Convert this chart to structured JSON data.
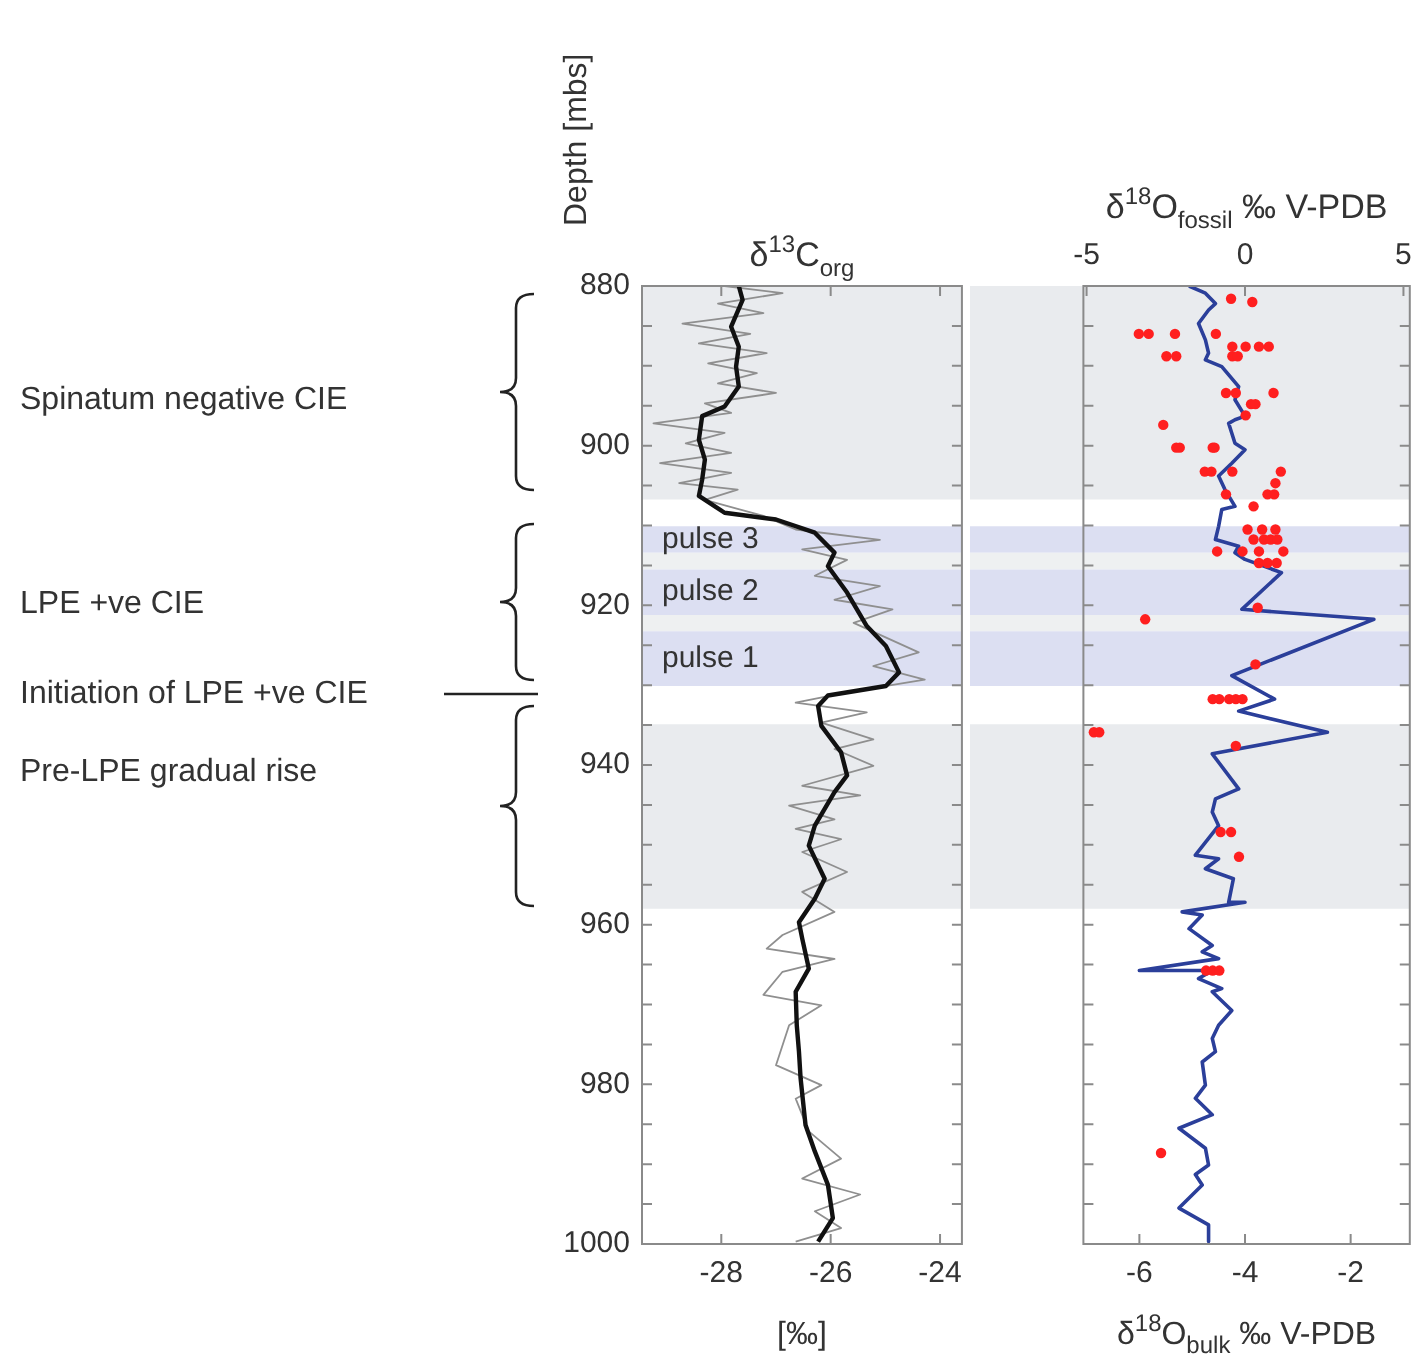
{
  "chart_data": [
    {
      "type": "line",
      "title": "δ$^{13}$C$_{org}$",
      "xlabel": "[‰]",
      "ylabel": "Depth [mbs]",
      "xlim": [
        -29.45,
        -23.6
      ],
      "xticks": [
        -28,
        -26,
        -24
      ],
      "ylim": [
        1000,
        880
      ],
      "yticks": [
        880,
        {
          "value": 885,
          "label": null
        },
        {
          "value": 890,
          "label": null
        },
        {
          "value": 895,
          "label": null
        },
        900,
        {
          "value": 905,
          "label": null
        },
        {
          "value": 910,
          "label": null
        },
        {
          "value": 915,
          "label": null
        },
        920,
        {
          "value": 925,
          "label": null
        },
        {
          "value": 930,
          "label": null
        },
        {
          "value": 935,
          "label": null
        },
        940,
        {
          "value": 945,
          "label": null
        },
        {
          "value": 950,
          "label": null
        },
        {
          "value": 955,
          "label": null
        },
        960,
        {
          "value": 965,
          "label": null
        },
        {
          "value": 970,
          "label": null
        },
        {
          "value": 975,
          "label": null
        },
        980,
        {
          "value": 985,
          "label": null
        },
        {
          "value": 990,
          "label": null
        },
        {
          "value": 995,
          "label": null
        },
        1000
      ],
      "bands": [
        {
          "axis": "y",
          "from": 880,
          "to": 906.75,
          "color": "#e9ebee"
        },
        {
          "axis": "y",
          "from": 910.1,
          "to": 913.4,
          "label": "pulse 3",
          "color": "#dcdff2"
        },
        {
          "axis": "y",
          "from": 913.4,
          "to": 915.5,
          "color": "#eef0f1"
        },
        {
          "axis": "y",
          "from": 915.5,
          "to": 921.2,
          "label": "pulse 2",
          "color": "#dcdff2"
        },
        {
          "axis": "y",
          "from": 921.2,
          "to": 923.25,
          "color": "#eef0f1"
        },
        {
          "axis": "y",
          "from": 923.25,
          "to": 930.1,
          "label": "pulse 1",
          "color": "#dcdff2"
        },
        {
          "axis": "y",
          "from": 934.9,
          "to": 958,
          "color": "#e9ebee"
        }
      ],
      "annotations": [
        "Spinatum negative CIE",
        "LPE +ve CIE",
        "Initiation of LPE +ve CIE",
        "Pre-LPE gradual rise"
      ],
      "series": [
        {
          "type": "line",
          "color": "#8f8f8f",
          "x": [
            -27.94,
            -26.88,
            -28.06,
            -27.23,
            -28.71,
            -27.47,
            -28.41,
            -27.17,
            -28.24,
            -27.35,
            -28.06,
            -27.0,
            -28.3,
            -27.82,
            -29.24,
            -27.94,
            -28.65,
            -27.82,
            -29.12,
            -27.82,
            -28.77,
            -27.7,
            -28.3,
            -27.23,
            -26.64,
            -25.1,
            -26.52,
            -25.7,
            -26.29,
            -25.1,
            -25.93,
            -24.87,
            -25.58,
            -24.39,
            -25.22,
            -24.28,
            -25.7,
            -26.64,
            -25.34,
            -26.17,
            -25.22,
            -25.93,
            -25.22,
            -26.52,
            -25.46,
            -26.76,
            -25.93,
            -26.64,
            -25.81,
            -26.52,
            -25.7,
            -26.52,
            -25.93,
            -26.88,
            -27.17,
            -25.93,
            -26.88,
            -27.23,
            -26.17,
            -26.76,
            -27.0,
            -26.17,
            -26.64,
            -26.4,
            -25.81,
            -26.52,
            -25.46,
            -26.29,
            -25.81,
            -26.64
          ],
          "values": [
            880,
            880.9,
            882.2,
            883.4,
            884.7,
            886.0,
            887.2,
            888.4,
            889.7,
            890.9,
            892.2,
            893.4,
            894.7,
            895.9,
            897.2,
            898.4,
            899.7,
            900.9,
            902.2,
            903.4,
            904.7,
            905.5,
            906.8,
            908.8,
            910.5,
            911.8,
            913.0,
            914.3,
            916.3,
            917.6,
            919.3,
            920.5,
            922.2,
            925.9,
            927.6,
            929.3,
            930.9,
            932.2,
            933.4,
            934.7,
            936.8,
            938.0,
            940.1,
            942.6,
            943.8,
            945.1,
            946.8,
            948.0,
            949.3,
            950.9,
            953.4,
            955.9,
            958.4,
            961.3,
            963.0,
            964.3,
            965.9,
            968.8,
            970.1,
            972.6,
            977.6,
            980.1,
            981.8,
            985.9,
            989.3,
            991.8,
            993.8,
            995.9,
            998.0,
            999.7
          ]
        },
        {
          "type": "line",
          "color": "#111111",
          "x": [
            -27.68,
            -27.61,
            -27.82,
            -27.68,
            -27.73,
            -27.68,
            -27.94,
            -28.35,
            -28.41,
            -28.3,
            -28.35,
            -28.41,
            -27.94,
            -27.0,
            -26.29,
            -25.93,
            -26.05,
            -25.7,
            -25.52,
            -25.34,
            -24.99,
            -24.75,
            -24.99,
            -26.05,
            -26.23,
            -26.17,
            -25.81,
            -25.7,
            -25.93,
            -26.29,
            -26.4,
            -26.11,
            -26.29,
            -26.58,
            -26.52,
            -26.4,
            -26.64,
            -26.62,
            -26.58,
            -26.55,
            -26.46,
            -26.29,
            -26.05,
            -25.96,
            -26.23
          ],
          "values": [
            880,
            881.75,
            885.1,
            887.6,
            890.1,
            892.6,
            895.1,
            896.3,
            899.25,
            901.75,
            904.25,
            906.3,
            908.4,
            909.25,
            910.9,
            913.4,
            915.1,
            918.4,
            920.5,
            922.6,
            925.1,
            928.4,
            930.1,
            931.3,
            932.6,
            935.1,
            938.4,
            941.3,
            943.4,
            947.6,
            950.1,
            954.25,
            956.75,
            959.7,
            961.75,
            965.5,
            968.4,
            972.6,
            975.9,
            979.25,
            985.1,
            988.4,
            992.6,
            996.75,
            999.7
          ]
        }
      ]
    },
    {
      "type": "line",
      "xlabel": "δ$^{18}$O$_{bulk}$ ‰ V-PDB",
      "x2label": "δ$^{18}$O$_{fossil}$ ‰ V-PDB",
      "tick_labels": "x",
      "xlim": [
        -7.06,
        -0.88
      ],
      "xticks": [
        -6,
        -4,
        -2
      ],
      "x2lim": [
        -5.1,
        5.2
      ],
      "x2ticks": [
        -5,
        0,
        5
      ],
      "ylim": [
        1000,
        880
      ],
      "yticks": [
        880,
        885,
        890,
        895,
        900,
        905,
        910,
        915,
        920,
        925,
        930,
        935,
        940,
        945,
        950,
        955,
        960,
        965,
        970,
        975,
        980,
        985,
        990,
        995,
        1000
      ],
      "bands": [
        {
          "axis": "y",
          "from": 880,
          "to": 906.75,
          "color": "#e9ebee"
        },
        {
          "axis": "y",
          "from": 910.1,
          "to": 913.4,
          "color": "#dcdff2"
        },
        {
          "axis": "y",
          "from": 913.4,
          "to": 915.5,
          "color": "#eef0f1"
        },
        {
          "axis": "y",
          "from": 915.5,
          "to": 921.2,
          "color": "#dcdff2"
        },
        {
          "axis": "y",
          "from": 921.2,
          "to": 923.25,
          "color": "#eef0f1"
        },
        {
          "axis": "y",
          "from": 923.25,
          "to": 930.1,
          "color": "#dcdff2"
        },
        {
          "axis": "y",
          "from": 934.9,
          "to": 958,
          "color": "#e9ebee"
        }
      ],
      "series": [
        {
          "type": "line",
          "color": "#2b3f9a",
          "x": [
            -5.06,
            -4.75,
            -4.56,
            -4.69,
            -4.88,
            -4.75,
            -4.69,
            -4.75,
            -4.44,
            -4.12,
            -4.19,
            -4.0,
            -4.19,
            -4.31,
            -4.19,
            -4.0,
            -4.25,
            -4.5,
            -4.38,
            -4.19,
            -4.44,
            -4.5,
            -4.56,
            -4.12,
            -4.19,
            -4.0,
            -3.31,
            -4.06,
            -1.56,
            -4.25,
            -3.44,
            -4.12,
            -2.44,
            -4.62,
            -4.12,
            -4.56,
            -4.62,
            -4.5,
            -4.94,
            -4.5,
            -4.75,
            -4.22,
            -4.31,
            -4.0,
            -5.19,
            -4.81,
            -5.06,
            -4.62,
            -4.81,
            -4.5,
            -6.0,
            -4.62,
            -4.88,
            -4.44,
            -4.62,
            -4.25,
            -4.5,
            -4.62,
            -4.56,
            -4.81,
            -4.75,
            -4.94,
            -4.62,
            -5.25,
            -4.75,
            -4.69,
            -4.94,
            -4.81,
            -5.25,
            -4.69,
            -4.69
          ],
          "values": [
            880,
            880.9,
            882.2,
            883.0,
            884.7,
            886.75,
            888.4,
            889.25,
            890.1,
            892.6,
            894.25,
            896.3,
            896.75,
            897.2,
            899.7,
            900.5,
            902.2,
            903.8,
            905.5,
            907.6,
            908.0,
            910.1,
            911.75,
            912.6,
            913.4,
            914.25,
            915.9,
            920.5,
            921.75,
            928.8,
            931.75,
            933.25,
            935.9,
            938.6,
            943.0,
            944.25,
            945.9,
            947.6,
            951.3,
            951.75,
            953.0,
            954.25,
            957.2,
            957.2,
            958.4,
            958.8,
            960.5,
            962.6,
            963.4,
            964.25,
            965.75,
            965.75,
            966.75,
            968.0,
            968.4,
            970.75,
            972.6,
            974.25,
            975.9,
            977.2,
            980.1,
            981.75,
            983.8,
            985.5,
            988.0,
            990.1,
            991.3,
            992.6,
            995.5,
            997.6,
            999.7
          ]
        },
        {
          "type": "scatter",
          "axis": "x2",
          "marker": "circle",
          "color": "#ff1f1f",
          "x": [
            -0.44,
            0.23,
            -3.35,
            -3.04,
            -2.21,
            -0.92,
            -0.4,
            0.02,
            0.44,
            0.75,
            -2.48,
            -2.17,
            -0.4,
            -0.23,
            -0.6,
            -0.29,
            0.9,
            0.19,
            0.33,
            0.02,
            -2.58,
            -2.17,
            -2.06,
            -1.02,
            -0.96,
            -1.27,
            -1.06,
            -0.4,
            1.13,
            0.96,
            0.71,
            0.92,
            -0.6,
            0.27,
            0.08,
            0.54,
            0.96,
            0.27,
            0.6,
            0.81,
            1.02,
            -0.88,
            -0.08,
            0.44,
            1.21,
            0.44,
            0.71,
            1.0,
            0.4,
            -3.15,
            0.33,
            -1.02,
            -0.81,
            -0.5,
            -0.29,
            -0.08,
            -4.77,
            -4.6,
            -0.29,
            -0.77,
            -0.44,
            -0.19,
            -1.23,
            -1.02,
            -0.81,
            -2.65
          ],
          "values": [
            881.6,
            882.0,
            886.0,
            886.0,
            886.0,
            886.0,
            887.6,
            887.6,
            887.6,
            887.6,
            888.8,
            888.8,
            888.8,
            888.8,
            893.4,
            893.4,
            893.4,
            894.8,
            894.8,
            896.2,
            897.4,
            900.25,
            900.25,
            900.25,
            900.25,
            903.25,
            903.25,
            903.25,
            903.25,
            904.7,
            906.1,
            906.1,
            906.1,
            907.6,
            910.5,
            910.5,
            910.5,
            911.75,
            911.75,
            911.75,
            911.75,
            913.25,
            913.25,
            913.25,
            913.25,
            914.7,
            914.7,
            914.7,
            920.3,
            921.75,
            927.4,
            931.75,
            931.75,
            931.75,
            931.75,
            931.75,
            935.9,
            935.9,
            937.6,
            948.4,
            948.4,
            951.5,
            965.75,
            965.75,
            965.75,
            988.6
          ]
        }
      ]
    }
  ]
}
